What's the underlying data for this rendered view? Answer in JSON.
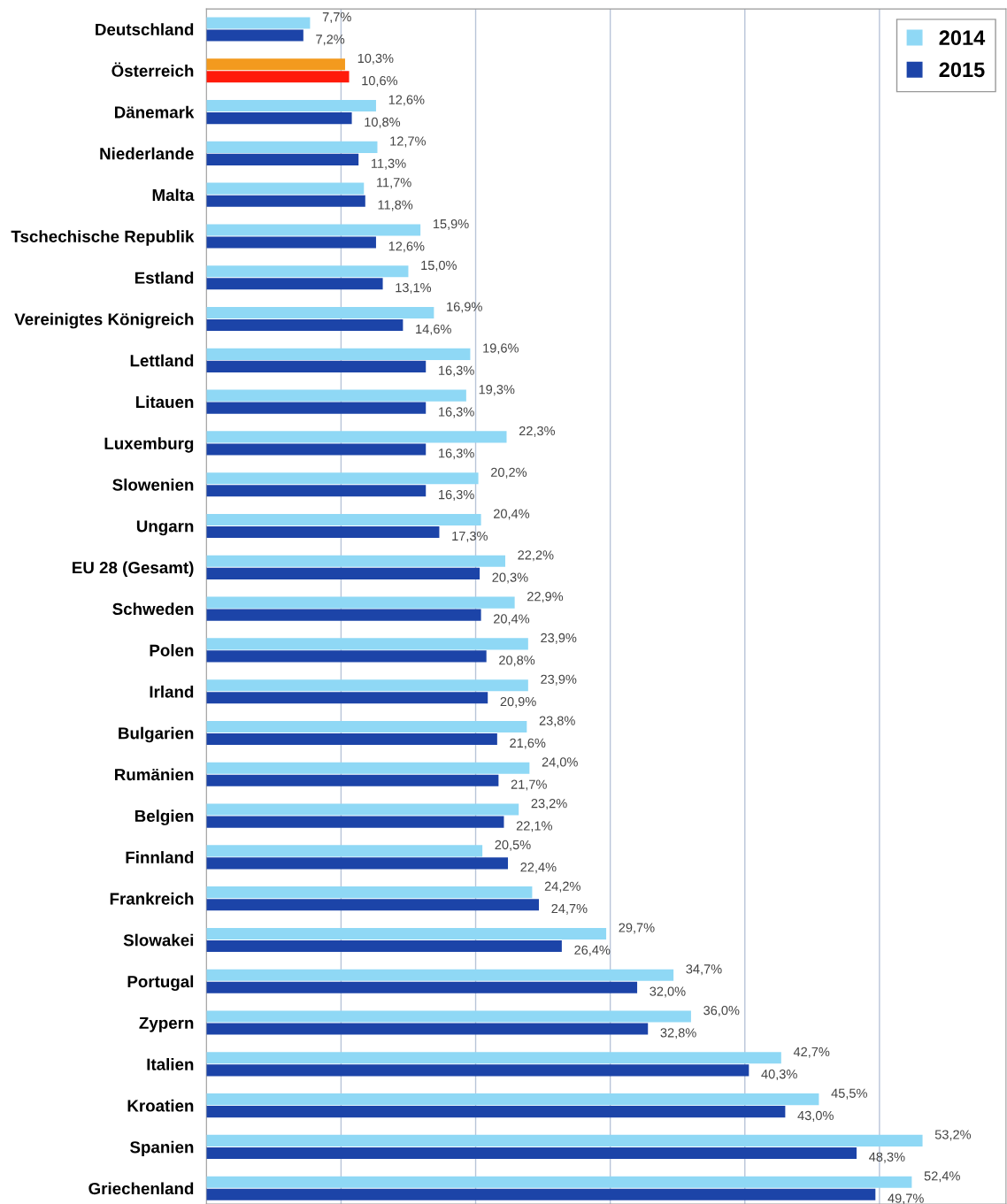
{
  "chart_data": {
    "type": "bar",
    "orientation": "horizontal",
    "categories": [
      "Deutschland",
      "Österreich",
      "Dänemark",
      "Niederlande",
      "Malta",
      "Tschechische Republik",
      "Estland",
      "Vereinigtes Königreich",
      "Lettland",
      "Litauen",
      "Luxemburg",
      "Slowenien",
      "Ungarn",
      "EU 28 (Gesamt)",
      "Schweden",
      "Polen",
      "Irland",
      "Bulgarien",
      "Rumänien",
      "Belgien",
      "Finnland",
      "Frankreich",
      "Slowakei",
      "Portugal",
      "Zypern",
      "Italien",
      "Kroatien",
      "Spanien",
      "Griechenland"
    ],
    "series": [
      {
        "name": "2014",
        "color": "#8fd8f5",
        "colors": [
          "#8fd8f5",
          "#f39a1e",
          "#8fd8f5",
          "#8fd8f5",
          "#8fd8f5",
          "#8fd8f5",
          "#8fd8f5",
          "#8fd8f5",
          "#8fd8f5",
          "#8fd8f5",
          "#8fd8f5",
          "#8fd8f5",
          "#8fd8f5",
          "#8fd8f5",
          "#8fd8f5",
          "#8fd8f5",
          "#8fd8f5",
          "#8fd8f5",
          "#8fd8f5",
          "#8fd8f5",
          "#8fd8f5",
          "#8fd8f5",
          "#8fd8f5",
          "#8fd8f5",
          "#8fd8f5",
          "#8fd8f5",
          "#8fd8f5",
          "#8fd8f5",
          "#8fd8f5"
        ],
        "values": [
          7.7,
          10.3,
          12.6,
          12.7,
          11.7,
          15.9,
          15.0,
          16.9,
          19.6,
          19.3,
          22.3,
          20.2,
          20.4,
          22.2,
          22.9,
          23.9,
          23.9,
          23.8,
          24.0,
          23.2,
          20.5,
          24.2,
          29.7,
          34.7,
          36.0,
          42.7,
          45.5,
          53.2,
          52.4
        ],
        "value_labels": [
          "7,7%",
          "10,3%",
          "12,6%",
          "12,7%",
          "11,7%",
          "15,9%",
          "15,0%",
          "16,9%",
          "19,6%",
          "19,3%",
          "22,3%",
          "20,2%",
          "20,4%",
          "22,2%",
          "22,9%",
          "23,9%",
          "23,9%",
          "23,8%",
          "24,0%",
          "23,2%",
          "20,5%",
          "24,2%",
          "29,7%",
          "34,7%",
          "36,0%",
          "42,7%",
          "45,5%",
          "53,2%",
          "52,4%"
        ]
      },
      {
        "name": "2015",
        "color": "#1c44a8",
        "colors": [
          "#1c44a8",
          "#ff1a0a",
          "#1c44a8",
          "#1c44a8",
          "#1c44a8",
          "#1c44a8",
          "#1c44a8",
          "#1c44a8",
          "#1c44a8",
          "#1c44a8",
          "#1c44a8",
          "#1c44a8",
          "#1c44a8",
          "#1c44a8",
          "#1c44a8",
          "#1c44a8",
          "#1c44a8",
          "#1c44a8",
          "#1c44a8",
          "#1c44a8",
          "#1c44a8",
          "#1c44a8",
          "#1c44a8",
          "#1c44a8",
          "#1c44a8",
          "#1c44a8",
          "#1c44a8",
          "#1c44a8",
          "#1c44a8"
        ],
        "values": [
          7.2,
          10.6,
          10.8,
          11.3,
          11.8,
          12.6,
          13.1,
          14.6,
          16.3,
          16.3,
          16.3,
          16.3,
          17.3,
          20.3,
          20.4,
          20.8,
          20.9,
          21.6,
          21.7,
          22.1,
          22.4,
          24.7,
          26.4,
          32.0,
          32.8,
          40.3,
          43.0,
          48.3,
          49.7
        ],
        "value_labels": [
          "7,2%",
          "10,6%",
          "10,8%",
          "11,3%",
          "11,8%",
          "12,6%",
          "13,1%",
          "14,6%",
          "16,3%",
          "16,3%",
          "16,3%",
          "16,3%",
          "17,3%",
          "20,3%",
          "20,4%",
          "20,8%",
          "20,9%",
          "21,6%",
          "21,7%",
          "22,1%",
          "22,4%",
          "24,7%",
          "26,4%",
          "32,0%",
          "32,8%",
          "40,3%",
          "43,0%",
          "48,3%",
          "49,7%"
        ]
      }
    ],
    "xlim": [
      0,
      59.4
    ],
    "xticks": [
      {
        "value": 10,
        "label": null
      },
      {
        "value": 20,
        "label": null
      },
      {
        "value": 30,
        "label": null
      },
      {
        "value": 40,
        "label": null
      },
      {
        "value": 50,
        "label": null
      }
    ],
    "tick_labels": "y",
    "grid": "x",
    "legend": "top right"
  }
}
